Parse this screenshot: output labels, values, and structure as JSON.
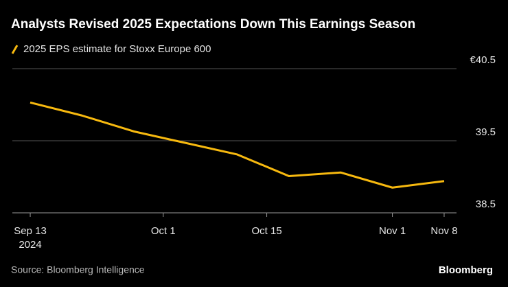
{
  "chart_data": {
    "type": "line",
    "title": "Analysts Revised 2025 Expectations Down This Earnings Season",
    "x": [
      "2024-09-13",
      "2024-09-20",
      "2024-09-27",
      "2024-10-04",
      "2024-10-11",
      "2024-10-18",
      "2024-10-25",
      "2024-11-01",
      "2024-11-08"
    ],
    "series": [
      {
        "name": "2025 EPS estimate for Stoxx Europe 600",
        "color": "#f7b90f",
        "values": [
          40.03,
          39.85,
          39.63,
          39.47,
          39.31,
          39.01,
          39.06,
          38.85,
          38.94
        ]
      }
    ],
    "xlim": [
      "2024-09-11",
      "2024-11-10"
    ],
    "xticks": [
      {
        "value": "2024-09-13",
        "label": "Sep 13"
      },
      {
        "value": "2024-10-01",
        "label": "Oct 1"
      },
      {
        "value": "2024-10-15",
        "label": "Oct 15"
      },
      {
        "value": "2024-11-01",
        "label": "Nov 1"
      },
      {
        "value": "2024-11-08",
        "label": "Nov 8"
      }
    ],
    "x_year_label": "2024",
    "ylim": [
      38.5,
      40.5
    ],
    "yticks": [
      38.5,
      39.5,
      {
        "value": 40.5,
        "label": "€40.5"
      }
    ],
    "grid": true,
    "source": "Source: Bloomberg Intelligence",
    "brand": "Bloomberg"
  }
}
